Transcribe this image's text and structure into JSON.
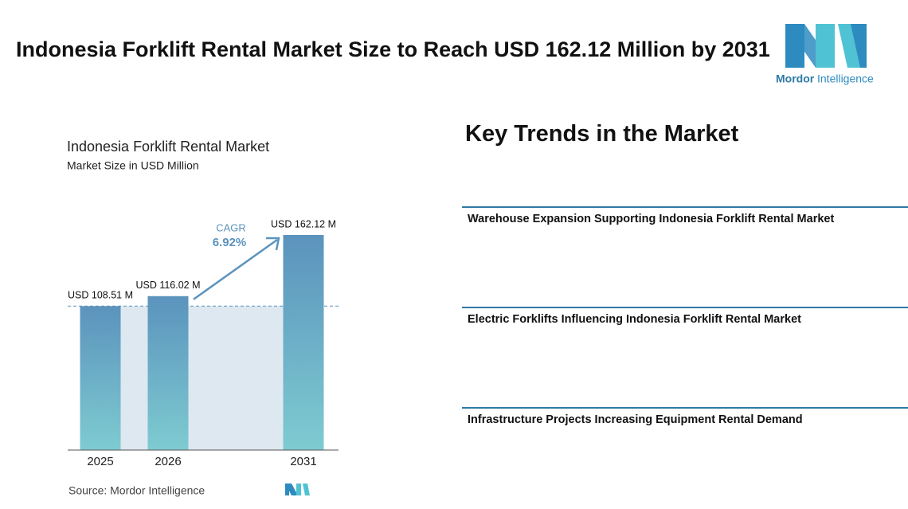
{
  "header": {
    "title": "Indonesia Forklift Rental Market Size to Reach USD 162.12 Million by 2031",
    "logo_brand": "Mordor",
    "logo_suffix": "Intelligence"
  },
  "chart_data": {
    "type": "bar",
    "title": "Indonesia Forklift Rental Market",
    "subtitle": "Market Size in USD Million",
    "categories": [
      "2025",
      "2026",
      "2031"
    ],
    "values": [
      108.51,
      116.02,
      162.12
    ],
    "value_labels": [
      "USD 108.51 M",
      "USD 116.02 M",
      "USD 162.12 M"
    ],
    "color": "#5b93bd",
    "annotation": {
      "label": "CAGR",
      "value": "6.92%"
    },
    "source": "Source: Mordor Intelligence"
  },
  "trends": {
    "title": "Key Trends in the Market",
    "items": [
      "Warehouse Expansion Supporting Indonesia Forklift Rental Market",
      "Electric Forklifts Influencing Indonesia Forklift Rental Market",
      "Infrastructure Projects Increasing Equipment Rental Demand"
    ]
  }
}
